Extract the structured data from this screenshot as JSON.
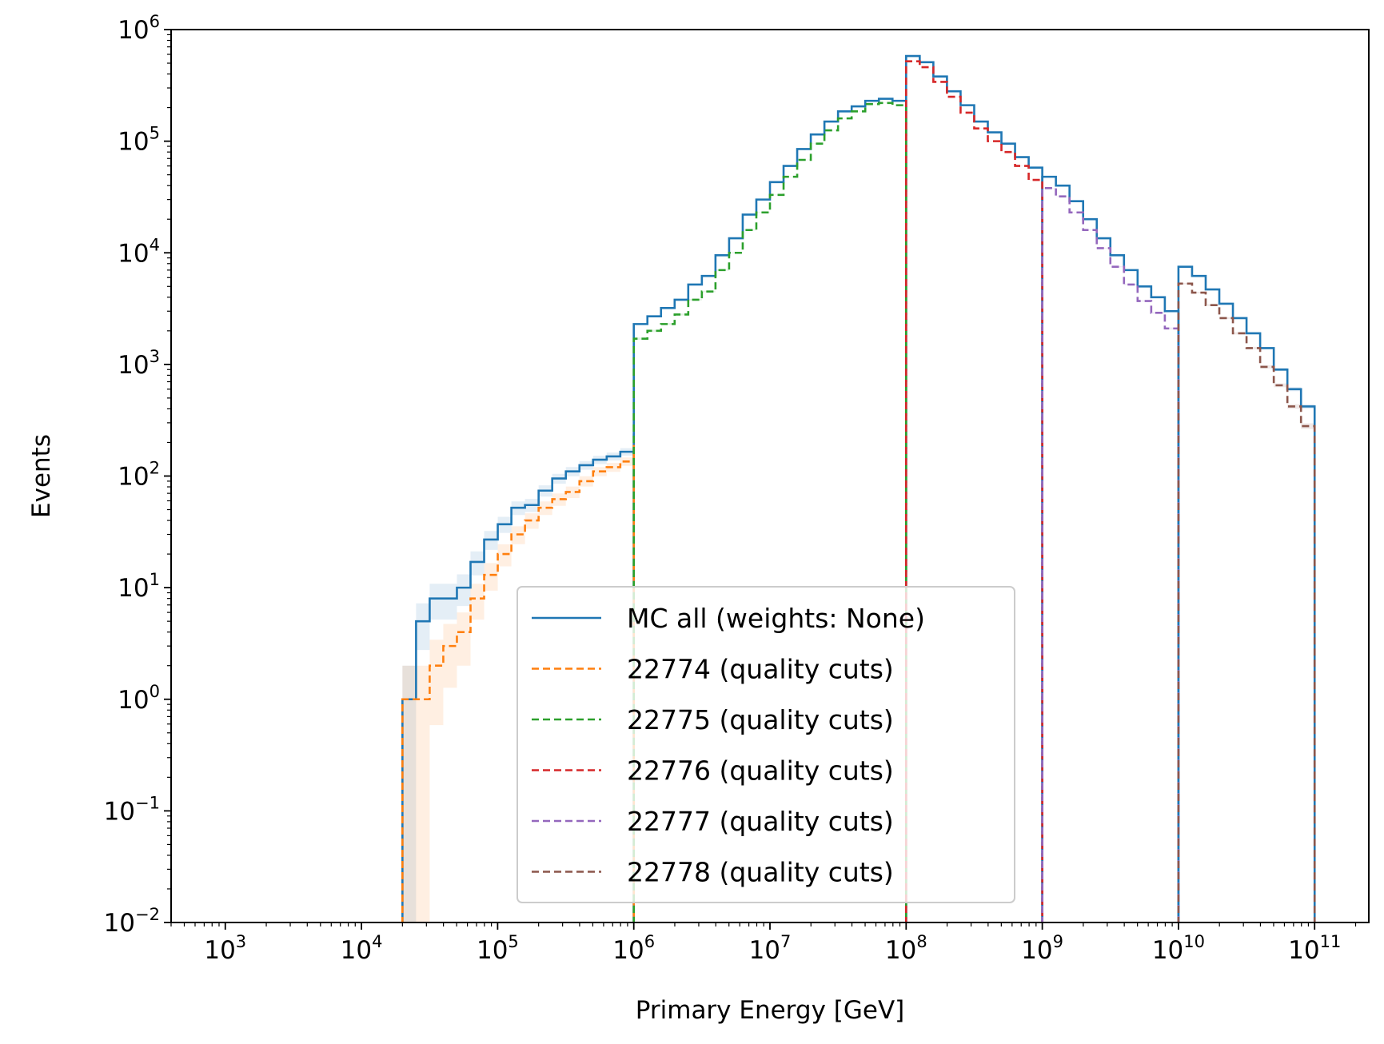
{
  "chart_data": {
    "type": "histogram-step",
    "xlabel": "Primary Energy [GeV]",
    "ylabel": "Events",
    "xscale": "log",
    "yscale": "log",
    "xlim": [
      400,
      250000000000.0
    ],
    "ylim": [
      0.01,
      1000000
    ],
    "x_tick_labels": [
      {
        "value": 1000,
        "base": "10",
        "exp": "3"
      },
      {
        "value": 10000,
        "base": "10",
        "exp": "4"
      },
      {
        "value": 100000,
        "base": "10",
        "exp": "5"
      },
      {
        "value": 1000000,
        "base": "10",
        "exp": "6"
      },
      {
        "value": 10000000,
        "base": "10",
        "exp": "7"
      },
      {
        "value": 100000000,
        "base": "10",
        "exp": "8"
      },
      {
        "value": 1000000000,
        "base": "10",
        "exp": "9"
      },
      {
        "value": 10000000000,
        "base": "10",
        "exp": "10"
      },
      {
        "value": 100000000000,
        "base": "10",
        "exp": "11"
      }
    ],
    "y_tick_labels": [
      {
        "value": 0.01,
        "base": "10",
        "exp": "−2"
      },
      {
        "value": 0.1,
        "base": "10",
        "exp": "−1"
      },
      {
        "value": 1,
        "base": "10",
        "exp": "0"
      },
      {
        "value": 10,
        "base": "10",
        "exp": "1"
      },
      {
        "value": 100,
        "base": "10",
        "exp": "2"
      },
      {
        "value": 1000,
        "base": "10",
        "exp": "3"
      },
      {
        "value": 10000,
        "base": "10",
        "exp": "4"
      },
      {
        "value": 100000,
        "base": "10",
        "exp": "5"
      },
      {
        "value": 1000000,
        "base": "10",
        "exp": "6"
      }
    ],
    "legend_position": "lower center",
    "bins_per_decade": 10,
    "series": [
      {
        "name": "MC all (weights: None)",
        "color": "#1f77b4",
        "linestyle": "solid",
        "segments": [
          {
            "start": 20000,
            "end": 1000000,
            "values": [
              1,
              5,
              8,
              8,
              10,
              17,
              27,
              37,
              52,
              55,
              74,
              95,
              110,
              125,
              140,
              150,
              165,
              160,
              210,
              190,
              225,
              240,
              205
            ]
          },
          {
            "start": 1000000,
            "end": 100000000,
            "values": [
              2300,
              2700,
              3200,
              3800,
              5200,
              6200,
              9500,
              13500,
              22000,
              30000,
              43000,
              60000,
              85000,
              115000,
              150000,
              185000,
              205000,
              230000,
              240000,
              230000,
              200000,
              160000,
              140000,
              115000
            ]
          },
          {
            "start": 100000000,
            "end": 1000000000,
            "values": [
              580000,
              510000,
              380000,
              280000,
              210000,
              150000,
              120000,
              95000,
              72000,
              58000,
              42000,
              34000
            ]
          },
          {
            "start": 1000000000,
            "end": 10000000000,
            "values": [
              48000,
              40000,
              29000,
              20000,
              13500,
              9500,
              7000,
              5000,
              4000,
              3000,
              2300
            ]
          },
          {
            "start": 10000000000,
            "end": 100000000000,
            "values": [
              7500,
              6200,
              4700,
              3500,
              2600,
              1900,
              1400,
              900,
              600,
              420,
              210,
              90
            ]
          }
        ]
      },
      {
        "name": "22774 (quality cuts)",
        "color": "#ff7f0e",
        "linestyle": "dashed",
        "segments": [
          {
            "start": 20000,
            "end": 1000000,
            "values": [
              1,
              1,
              2,
              3,
              4,
              8,
              13,
              20,
              30,
              40,
              52,
              62,
              72,
              90,
              110,
              120,
              135,
              140,
              160,
              170,
              175,
              190
            ]
          }
        ]
      },
      {
        "name": "22775 (quality cuts)",
        "color": "#2ca02c",
        "linestyle": "dashed",
        "segments": [
          {
            "start": 1000000,
            "end": 100000000,
            "values": [
              1700,
              2000,
              2300,
              2800,
              3800,
              4500,
              7000,
              10000,
              16000,
              23000,
              33000,
              48000,
              68000,
              95000,
              125000,
              160000,
              185000,
              215000,
              220000,
              210000,
              180000,
              140000,
              110000,
              85000
            ]
          }
        ]
      },
      {
        "name": "22776 (quality cuts)",
        "color": "#d62728",
        "linestyle": "dashed",
        "segments": [
          {
            "start": 100000000,
            "end": 1000000000,
            "values": [
              520000,
              460000,
              340000,
              250000,
              180000,
              130000,
              100000,
              80000,
              60000,
              45000,
              32000,
              24000
            ]
          }
        ]
      },
      {
        "name": "22777 (quality cuts)",
        "color": "#9467bd",
        "linestyle": "dashed",
        "segments": [
          {
            "start": 1000000000,
            "end": 10000000000,
            "values": [
              38000,
              32000,
              23000,
              16000,
              11000,
              7500,
              5200,
              3700,
              2900,
              2100,
              1600
            ]
          }
        ]
      },
      {
        "name": "22778 (quality cuts)",
        "color": "#8c564b",
        "linestyle": "dashed",
        "segments": [
          {
            "start": 10000000000,
            "end": 100000000000,
            "values": [
              5300,
              4400,
              3400,
              2600,
              1900,
              1400,
              950,
              650,
              420,
              280,
              150,
              65
            ]
          }
        ]
      }
    ]
  }
}
